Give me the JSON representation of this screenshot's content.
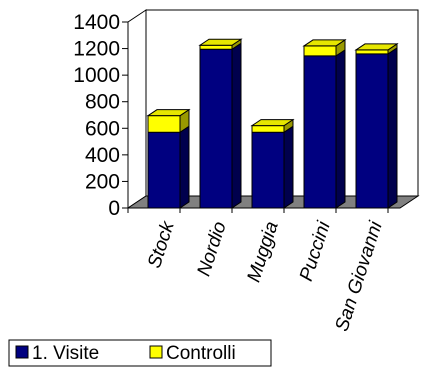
{
  "chart_data": {
    "type": "bar",
    "stacked": true,
    "categories": [
      "Stock",
      "Nordio",
      "Muggia",
      "Puccini",
      "San Giovanni"
    ],
    "series": [
      {
        "name": "1. Visite",
        "color": "#000080",
        "values": [
          570,
          1195,
          570,
          1145,
          1160
        ]
      },
      {
        "name": "Controlli",
        "color": "#ffff00",
        "values": [
          125,
          30,
          50,
          75,
          30
        ]
      }
    ],
    "ylim": [
      0,
      1400
    ],
    "yticks": [
      0,
      200,
      400,
      600,
      800,
      1000,
      1200,
      1400
    ],
    "title": "",
    "xlabel": "",
    "ylabel": "",
    "grid": false,
    "legend_position": "bottom-left",
    "three_d": true,
    "floor_color": "#808080"
  }
}
